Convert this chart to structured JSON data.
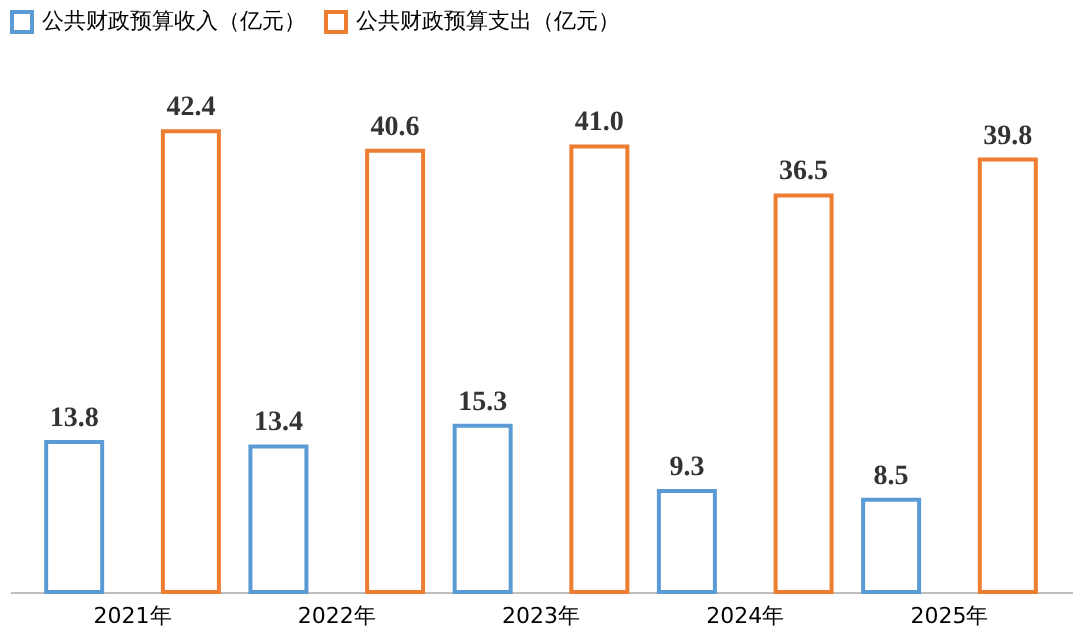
{
  "chart_data": {
    "type": "bar",
    "categories": [
      "2021年",
      "2022年",
      "2023年",
      "2024年",
      "2025年"
    ],
    "series": [
      {
        "name": "公共财政预算收入（亿元）",
        "color": "#5b9bd5",
        "values": [
          13.8,
          13.4,
          15.3,
          9.3,
          8.5
        ],
        "value_labels": [
          "13.8",
          "13.4",
          "15.3",
          "9.3",
          "8.5"
        ]
      },
      {
        "name": "公共财政预算支出（亿元）",
        "color": "#ed7d31",
        "values": [
          42.4,
          40.6,
          41.0,
          36.5,
          39.8
        ],
        "value_labels": [
          "42.4",
          "40.6",
          "41.0",
          "36.5",
          "39.8"
        ]
      }
    ],
    "legend": "top"
  }
}
